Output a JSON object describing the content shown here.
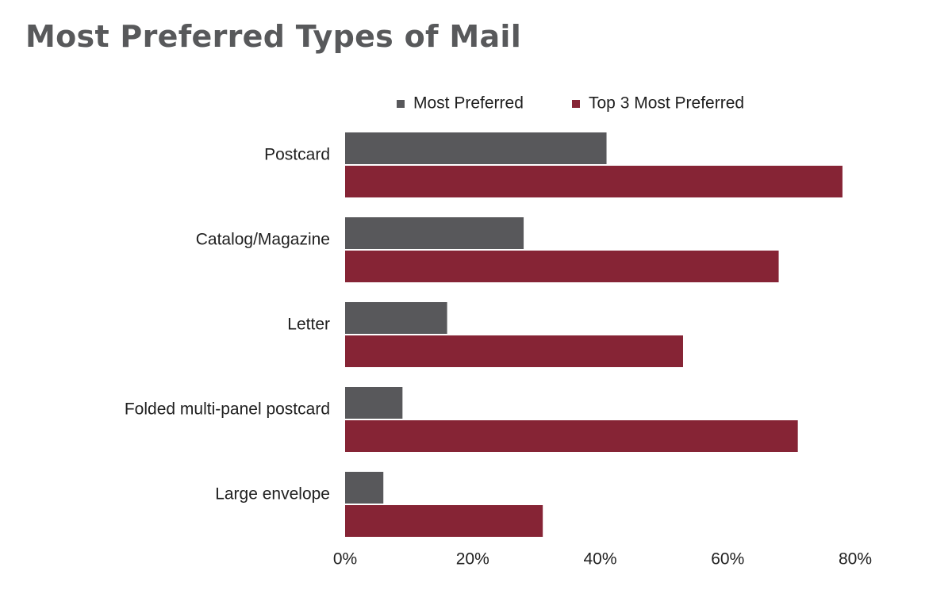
{
  "chart_data": {
    "type": "bar",
    "orientation": "horizontal",
    "title": "Most Preferred Types of Mail",
    "categories": [
      "Postcard",
      "Catalog/Magazine",
      "Letter",
      "Folded multi-panel postcard",
      "Large envelope"
    ],
    "series": [
      {
        "name": "Most Preferred",
        "color": "#58585b",
        "values": [
          41,
          28,
          16,
          9,
          6
        ]
      },
      {
        "name": "Top 3 Most Preferred",
        "color": "#862435",
        "values": [
          78,
          68,
          53,
          71,
          31
        ]
      }
    ],
    "xlim": [
      0,
      80
    ],
    "x_ticks": [
      "0%",
      "20%",
      "40%",
      "60%",
      "80%"
    ],
    "x_tick_values": [
      0,
      20,
      40,
      60,
      80
    ],
    "xlabel": "",
    "ylabel": "",
    "grid": false,
    "legend_position": "top"
  }
}
